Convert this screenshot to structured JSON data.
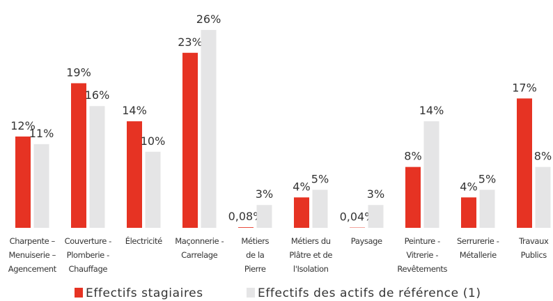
{
  "chart_data": {
    "type": "bar",
    "categories": [
      [
        "Charpente –",
        "Menuiserie –",
        "Agencement"
      ],
      [
        "Couverture -",
        "Plomberie -",
        "Chauffage"
      ],
      [
        "Électricité"
      ],
      [
        "Maçonnerie -",
        "Carrelage"
      ],
      [
        "Métiers",
        "de la",
        "Pierre"
      ],
      [
        "Métiers du",
        "Plâtre et de",
        "l'Isolation"
      ],
      [
        "Paysage"
      ],
      [
        "Peinture -",
        "Vitrerie -",
        "Revêtements"
      ],
      [
        "Serrurerie -",
        "Métallerie"
      ],
      [
        "Travaux",
        "Publics"
      ]
    ],
    "series": [
      {
        "name": "Effectifs stagiaires",
        "color": "#e63323",
        "values": [
          12,
          19,
          14,
          23,
          0.08,
          4,
          0.04,
          8,
          4,
          17
        ],
        "value_labels": [
          "12%",
          "19%",
          "14%",
          "23%",
          "0,08%",
          "4%",
          "0,04%",
          "8%",
          "4%",
          "17%"
        ]
      },
      {
        "name": "Effectifs des actifs de référence (1)",
        "color": "#e5e5e6",
        "values": [
          11,
          16,
          10,
          26,
          3,
          5,
          3,
          14,
          5,
          8
        ],
        "value_labels": [
          "11%",
          "16%",
          "10%",
          "26%",
          "3%",
          "5%",
          "3%",
          "14%",
          "5%",
          "8%"
        ]
      }
    ]
  }
}
